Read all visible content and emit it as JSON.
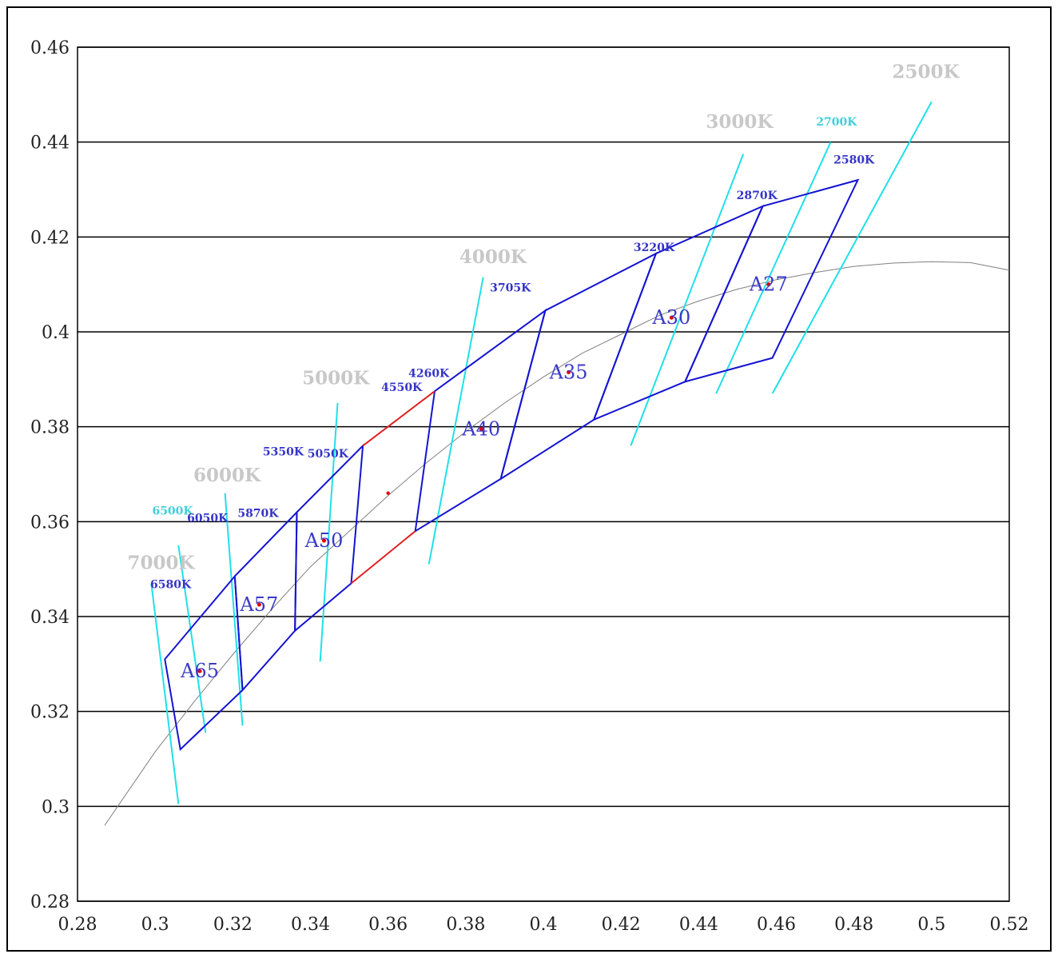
{
  "chart_data": {
    "type": "scatter",
    "title": "",
    "xlabel": "",
    "ylabel": "",
    "xlim": [
      0.28,
      0.52
    ],
    "ylim": [
      0.28,
      0.46
    ],
    "grid": "horizontal",
    "x_ticks": [
      {
        "v": 0.28,
        "label": "0.28"
      },
      {
        "v": 0.3,
        "label": "0.3"
      },
      {
        "v": 0.32,
        "label": "0.32"
      },
      {
        "v": 0.34,
        "label": "0.34"
      },
      {
        "v": 0.36,
        "label": "0.36"
      },
      {
        "v": 0.38,
        "label": "0.38"
      },
      {
        "v": 0.4,
        "label": "0.4"
      },
      {
        "v": 0.42,
        "label": "0.42"
      },
      {
        "v": 0.44,
        "label": "0.44"
      },
      {
        "v": 0.46,
        "label": "0.46"
      },
      {
        "v": 0.48,
        "label": "0.48"
      },
      {
        "v": 0.5,
        "label": "0.5"
      },
      {
        "v": 0.52,
        "label": "0.52"
      }
    ],
    "y_ticks": [
      {
        "v": 0.28,
        "label": "0.28"
      },
      {
        "v": 0.3,
        "label": "0.3"
      },
      {
        "v": 0.32,
        "label": "0.32"
      },
      {
        "v": 0.34,
        "label": "0.34"
      },
      {
        "v": 0.36,
        "label": "0.36"
      },
      {
        "v": 0.38,
        "label": "0.38"
      },
      {
        "v": 0.4,
        "label": "0.4"
      },
      {
        "v": 0.42,
        "label": "0.42"
      },
      {
        "v": 0.44,
        "label": "0.44"
      },
      {
        "v": 0.46,
        "label": "0.46"
      }
    ],
    "colors": {
      "grid": "#000000",
      "bins": "#1414d2",
      "red_segments": "#e02020",
      "isotherms": "#20e0e8",
      "locus": "#808080",
      "cct_label_gray": "#c8c8c8",
      "cct_label_cyan": "#40d0d8",
      "cct_label_blue": "#3434c8",
      "bin_label": "#3a3ac8",
      "center_dot": "#e00000"
    },
    "planckian_locus": [
      [
        0.287,
        0.296
      ],
      [
        0.3,
        0.3115
      ],
      [
        0.31,
        0.322
      ],
      [
        0.32,
        0.332
      ],
      [
        0.33,
        0.3415
      ],
      [
        0.34,
        0.3505
      ],
      [
        0.35,
        0.358
      ],
      [
        0.36,
        0.3655
      ],
      [
        0.37,
        0.3725
      ],
      [
        0.38,
        0.379
      ],
      [
        0.39,
        0.385
      ],
      [
        0.4,
        0.3905
      ],
      [
        0.41,
        0.3955
      ],
      [
        0.42,
        0.3995
      ],
      [
        0.43,
        0.4035
      ],
      [
        0.44,
        0.4065
      ],
      [
        0.45,
        0.409
      ],
      [
        0.46,
        0.411
      ],
      [
        0.47,
        0.4125
      ],
      [
        0.48,
        0.4138
      ],
      [
        0.49,
        0.4145
      ],
      [
        0.5,
        0.4148
      ],
      [
        0.51,
        0.4146
      ],
      [
        0.52,
        0.413
      ]
    ],
    "bins": [
      {
        "name": "A65",
        "points": [
          [
            0.3025,
            0.331
          ],
          [
            0.3205,
            0.3485
          ],
          [
            0.3225,
            0.3245
          ],
          [
            0.3065,
            0.312
          ]
        ],
        "center": [
          0.3115,
          0.3285
        ]
      },
      {
        "name": "A57",
        "points": [
          [
            0.3205,
            0.3485
          ],
          [
            0.3365,
            0.362
          ],
          [
            0.336,
            0.337
          ],
          [
            0.3225,
            0.3245
          ]
        ],
        "center": [
          0.3268,
          0.3425
        ]
      },
      {
        "name": "A50",
        "points": [
          [
            0.3365,
            0.362
          ],
          [
            0.3535,
            0.376
          ],
          [
            0.3505,
            0.347
          ],
          [
            0.336,
            0.337
          ]
        ],
        "center": [
          0.3435,
          0.356
        ]
      },
      {
        "name": "A40",
        "points": [
          [
            0.372,
            0.3875
          ],
          [
            0.4005,
            0.4045
          ],
          [
            0.389,
            0.369
          ],
          [
            0.367,
            0.358
          ]
        ],
        "center": [
          0.384,
          0.3795
        ]
      },
      {
        "name": "A35",
        "points": [
          [
            0.4005,
            0.4045
          ],
          [
            0.429,
            0.4165
          ],
          [
            0.413,
            0.3815
          ],
          [
            0.389,
            0.369
          ]
        ],
        "center": [
          0.4065,
          0.3915
        ]
      },
      {
        "name": "A30",
        "points": [
          [
            0.429,
            0.4165
          ],
          [
            0.4565,
            0.4265
          ],
          [
            0.4365,
            0.3895
          ],
          [
            0.413,
            0.3815
          ]
        ],
        "center": [
          0.433,
          0.403
        ]
      },
      {
        "name": "A27",
        "points": [
          [
            0.4565,
            0.4265
          ],
          [
            0.481,
            0.432
          ],
          [
            0.459,
            0.3945
          ],
          [
            0.4365,
            0.3895
          ]
        ],
        "center": [
          0.458,
          0.41
        ]
      }
    ],
    "red_segments": [
      [
        [
          0.3535,
          0.376
        ],
        [
          0.372,
          0.3875
        ]
      ],
      [
        [
          0.3505,
          0.347
        ],
        [
          0.367,
          0.358
        ]
      ]
    ],
    "red_center": [
      0.36,
      0.366
    ],
    "isotherms": [
      {
        "label": "7000K",
        "from": [
          0.306,
          0.3005
        ],
        "to": [
          0.299,
          0.347
        ]
      },
      {
        "label": "6500K",
        "from": [
          0.313,
          0.3155
        ],
        "to": [
          0.306,
          0.355
        ]
      },
      {
        "label": "6000K",
        "from": [
          0.3225,
          0.317
        ],
        "to": [
          0.318,
          0.366
        ]
      },
      {
        "label": "5000K",
        "from": [
          0.3425,
          0.3305
        ],
        "to": [
          0.347,
          0.385
        ]
      },
      {
        "label": "4000K",
        "from": [
          0.3705,
          0.351
        ],
        "to": [
          0.3845,
          0.4115
        ]
      },
      {
        "label": "3000K",
        "from": [
          0.4225,
          0.376
        ],
        "to": [
          0.4515,
          0.4375
        ]
      },
      {
        "label": "2700K",
        "from": [
          0.4445,
          0.387
        ],
        "to": [
          0.474,
          0.44
        ]
      },
      {
        "label": "2500K",
        "from": [
          0.459,
          0.387
        ],
        "to": [
          0.5,
          0.4485
        ]
      }
    ],
    "cct_labels": [
      {
        "text": "2500K",
        "style": "gray",
        "at": [
          0.4985,
          0.4535
        ]
      },
      {
        "text": "3000K",
        "style": "gray",
        "at": [
          0.4505,
          0.443
        ]
      },
      {
        "text": "2700K",
        "style": "cyan",
        "at": [
          0.4755,
          0.4435
        ]
      },
      {
        "text": "2580K",
        "style": "blue",
        "at": [
          0.48,
          0.4355
        ]
      },
      {
        "text": "2870K",
        "style": "blue",
        "at": [
          0.455,
          0.428
        ]
      },
      {
        "text": "3220K",
        "style": "blue",
        "at": [
          0.4285,
          0.417
        ]
      },
      {
        "text": "4000K",
        "style": "gray",
        "at": [
          0.387,
          0.4145
        ]
      },
      {
        "text": "3705K",
        "style": "blue",
        "at": [
          0.3915,
          0.4085
        ]
      },
      {
        "text": "4260K",
        "style": "blue",
        "at": [
          0.3705,
          0.3905
        ]
      },
      {
        "text": "4550K",
        "style": "blue",
        "at": [
          0.3635,
          0.3875
        ]
      },
      {
        "text": "5000K",
        "style": "gray",
        "at": [
          0.3465,
          0.389
        ]
      },
      {
        "text": "5350K",
        "style": "blue",
        "at": [
          0.333,
          0.374
        ]
      },
      {
        "text": "5050K",
        "style": "blue",
        "at": [
          0.3445,
          0.3735
        ]
      },
      {
        "text": "6000K",
        "style": "gray",
        "at": [
          0.3185,
          0.3685
        ]
      },
      {
        "text": "6500K",
        "style": "cyan",
        "at": [
          0.3045,
          0.3615
        ]
      },
      {
        "text": "6050K",
        "style": "blue",
        "at": [
          0.3135,
          0.36
        ]
      },
      {
        "text": "5870K",
        "style": "blue",
        "at": [
          0.3265,
          0.361
        ]
      },
      {
        "text": "7000K",
        "style": "gray",
        "at": [
          0.3015,
          0.35
        ]
      },
      {
        "text": "6580K",
        "style": "blue",
        "at": [
          0.304,
          0.346
        ]
      }
    ]
  }
}
